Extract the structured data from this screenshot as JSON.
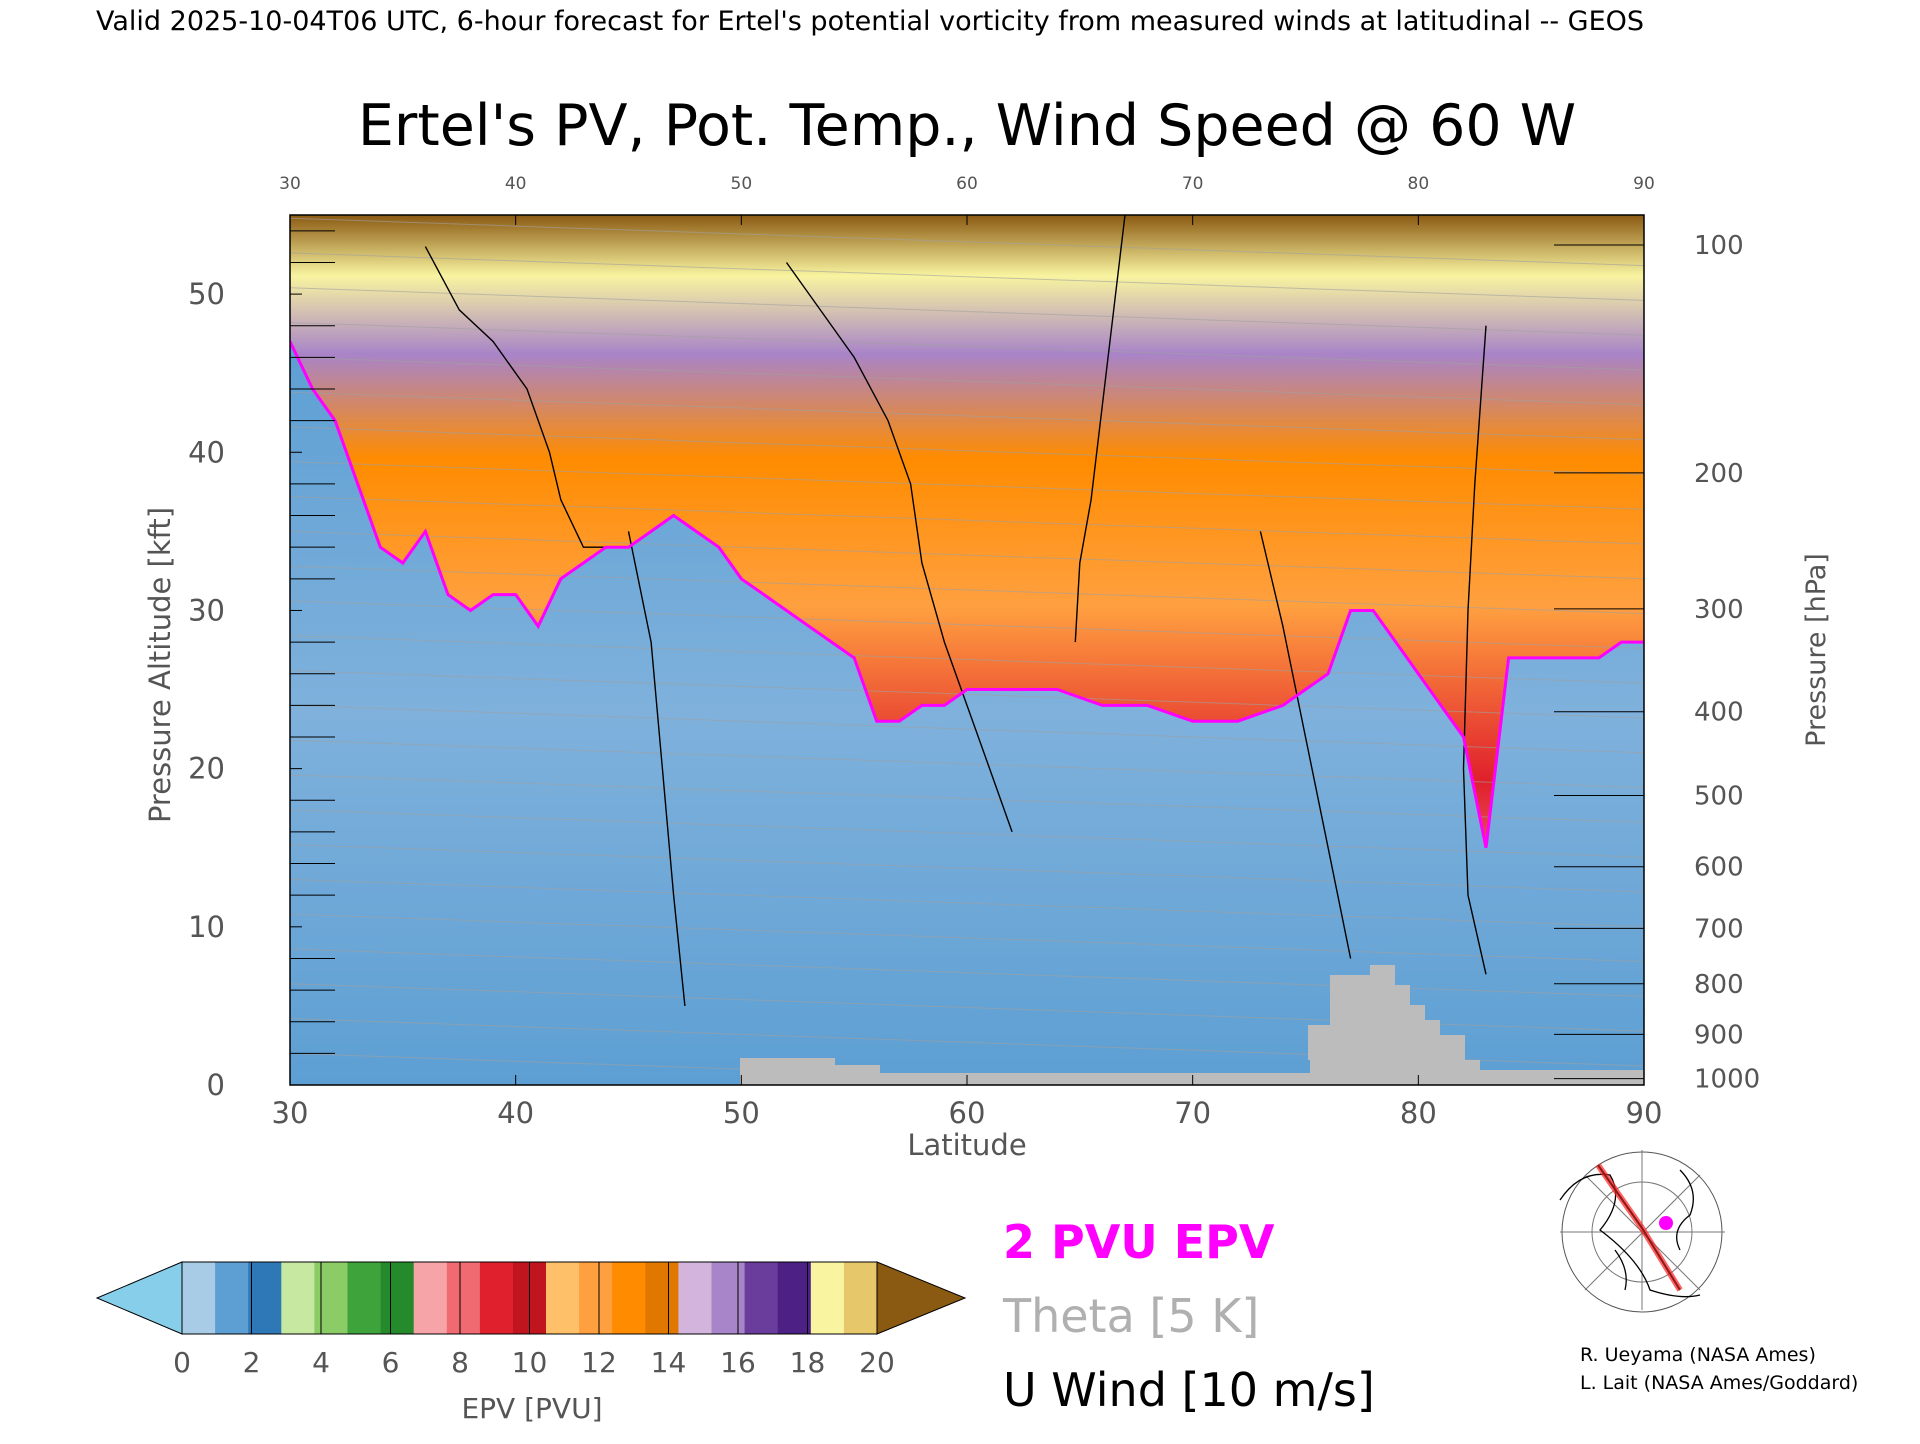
{
  "header": {
    "valid_line": "Valid 2025-10-04T06 UTC, 6-hour forecast for Ertel's potential vorticity from measured winds at latitudinal -- GEOS"
  },
  "chart_data": {
    "type": "heatmap",
    "title": "Ertel's PV, Pot. Temp., Wind Speed @ 60 W",
    "xlabel": "Latitude",
    "ylabel_left": "Pressure Altitude [kft]",
    "ylabel_right": "Pressure [hPa]",
    "xlim": [
      30,
      90
    ],
    "ylim": [
      0,
      55
    ],
    "x_ticks": [
      30,
      40,
      50,
      60,
      70,
      80,
      90
    ],
    "y_ticks": [
      0,
      10,
      20,
      30,
      40,
      50
    ],
    "pressure_ticks": [
      {
        "label": "100",
        "kft": 53.1
      },
      {
        "label": "200",
        "kft": 38.7
      },
      {
        "label": "300",
        "kft": 30.1
      },
      {
        "label": "400",
        "kft": 23.6
      },
      {
        "label": "500",
        "kft": 18.3
      },
      {
        "label": "600",
        "kft": 13.8
      },
      {
        "label": "700",
        "kft": 9.9
      },
      {
        "label": "800",
        "kft": 6.4
      },
      {
        "label": "900",
        "kft": 3.2
      },
      {
        "label": "1000",
        "kft": 0.4
      }
    ],
    "tropopause_2pvu": {
      "lat": [
        30,
        31,
        32,
        33,
        34,
        35,
        36,
        37,
        38,
        39,
        40,
        41,
        42,
        43,
        44,
        45,
        46,
        47,
        48,
        49,
        50,
        51,
        52,
        53,
        54,
        55,
        56,
        57,
        58,
        59,
        60,
        62,
        64,
        66,
        68,
        70,
        72,
        74,
        76,
        77,
        78,
        79,
        80,
        81,
        82,
        83,
        84,
        85,
        86,
        87,
        88,
        89,
        90
      ],
      "kft": [
        47,
        44,
        42,
        38,
        34,
        33,
        35,
        31,
        30,
        31,
        31,
        29,
        32,
        33,
        34,
        34,
        35,
        36,
        35,
        34,
        32,
        31,
        30,
        29,
        28,
        27,
        23,
        23,
        24,
        24,
        25,
        25,
        25,
        24,
        24,
        23,
        23,
        24,
        26,
        30,
        30,
        28,
        26,
        24,
        22,
        15,
        27,
        27,
        27,
        27,
        27,
        28,
        28
      ]
    },
    "zero_wind_contours": [
      {
        "lat": [
          36,
          37.5,
          39,
          40.5,
          41.5,
          42,
          43,
          44
        ],
        "kft": [
          53,
          49,
          47,
          44,
          40,
          37,
          34,
          34
        ]
      },
      {
        "lat": [
          67,
          66.5,
          66,
          65.5,
          65,
          64.8
        ],
        "kft": [
          55,
          49,
          43,
          37,
          33,
          28
        ]
      },
      {
        "lat": [
          83,
          82.5,
          82.2,
          82.0,
          82.2,
          83
        ],
        "kft": [
          48,
          38,
          30,
          20,
          12,
          7
        ]
      }
    ],
    "ten_wind_contours": [
      {
        "lat": [
          52,
          53.5,
          55,
          56.5,
          57.5,
          58,
          59,
          60,
          61,
          62
        ],
        "kft": [
          52,
          49,
          46,
          42,
          38,
          33,
          28,
          24,
          20,
          16
        ]
      },
      {
        "lat": [
          45,
          46,
          46.5,
          47,
          47.5
        ],
        "kft": [
          35,
          28,
          20,
          12,
          5
        ]
      },
      {
        "lat": [
          73,
          74,
          75,
          76,
          77
        ],
        "kft": [
          35,
          29,
          22,
          15,
          8
        ]
      }
    ],
    "colorbar": {
      "label": "EPV [PVU]",
      "ticks": [
        0,
        2,
        4,
        6,
        8,
        10,
        12,
        14,
        16,
        18,
        20
      ],
      "under_color": "#87ceeb",
      "over_color": "#8b5a12",
      "colors": [
        "#a8cce6",
        "#5d9fd3",
        "#2f78b8",
        "#c6e8a0",
        "#8ccc66",
        "#3da33a",
        "#258a2c",
        "#f7a4a8",
        "#f06a72",
        "#e0202c",
        "#c0151f",
        "#ffc06a",
        "#ffa040",
        "#ff8c00",
        "#e07800",
        "#d3b4dd",
        "#a884c8",
        "#6a3c9c",
        "#4c2084",
        "#f8f4a0",
        "#e6c86a"
      ]
    },
    "legend": {
      "pvu_label": "2 PVU EPV",
      "pvu_color": "#ff00ff",
      "theta_label": "Theta [5 K]",
      "theta_color": "#b0b0b0",
      "wind_label": "U Wind [10 m/s]",
      "wind_color": "#000000"
    },
    "credits": [
      "R. Ueyama (NASA Ames)",
      "L. Lait (NASA Ames/Goddard)"
    ]
  }
}
